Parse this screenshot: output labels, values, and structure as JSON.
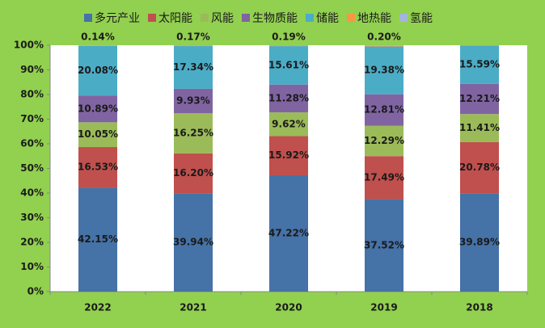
{
  "chart_data": {
    "type": "stacked_bar_percent",
    "categories": [
      "2022",
      "2021",
      "2020",
      "2019",
      "2018"
    ],
    "series": [
      {
        "name": "多元产业",
        "color": "#4572a7",
        "values": [
          42.15,
          39.94,
          47.22,
          37.52,
          39.89
        ],
        "value_labels": [
          "42.15%",
          "39.94%",
          "47.22%",
          "37.52%",
          "39.89%"
        ]
      },
      {
        "name": "太阳能",
        "color": "#c0504d",
        "values": [
          16.53,
          16.2,
          15.92,
          17.49,
          20.78
        ],
        "value_labels": [
          "16.53%",
          "16.20%",
          "15.92%",
          "17.49%",
          "20.78%"
        ]
      },
      {
        "name": "风能",
        "color": "#9bbb59",
        "values": [
          10.05,
          16.25,
          9.62,
          12.29,
          11.41
        ],
        "value_labels": [
          "10.05%",
          "16.25%",
          "9.62%",
          "12.29%",
          "11.41%"
        ]
      },
      {
        "name": "生物质能",
        "color": "#8064a2",
        "values": [
          10.89,
          9.93,
          11.28,
          12.81,
          12.21
        ],
        "value_labels": [
          "10.89%",
          "9.93%",
          "11.28%",
          "12.81%",
          "12.21%"
        ]
      },
      {
        "name": "储能",
        "color": "#4bacc6",
        "values": [
          20.08,
          17.34,
          15.61,
          19.38,
          15.59
        ],
        "value_labels": [
          "20.08%",
          "17.34%",
          "15.61%",
          "19.38%",
          "15.59%"
        ]
      },
      {
        "name": "地热能",
        "color": "#f79646",
        "values": [
          0.14,
          0.17,
          0.19,
          0.2,
          0.12
        ],
        "value_labels": [
          "0.14%",
          "0.17%",
          "0.19%",
          "0.20%",
          null
        ]
      },
      {
        "name": "氢能",
        "color": "#a5b4dc",
        "values": [
          0.16,
          0.17,
          0.16,
          0.31,
          0
        ]
      }
    ],
    "ylim": [
      0,
      100
    ],
    "yticks": [
      {
        "value": 0,
        "label": "0%"
      },
      {
        "value": 10,
        "label": "10%"
      },
      {
        "value": 20,
        "label": "20%"
      },
      {
        "value": 30,
        "label": "30%"
      },
      {
        "value": 40,
        "label": "40%"
      },
      {
        "value": 50,
        "label": "50%"
      },
      {
        "value": 60,
        "label": "60%"
      },
      {
        "value": 70,
        "label": "70%"
      },
      {
        "value": 80,
        "label": "80%"
      },
      {
        "value": 90,
        "label": "90%"
      },
      {
        "value": 100,
        "label": "100%"
      }
    ],
    "grid": false
  }
}
